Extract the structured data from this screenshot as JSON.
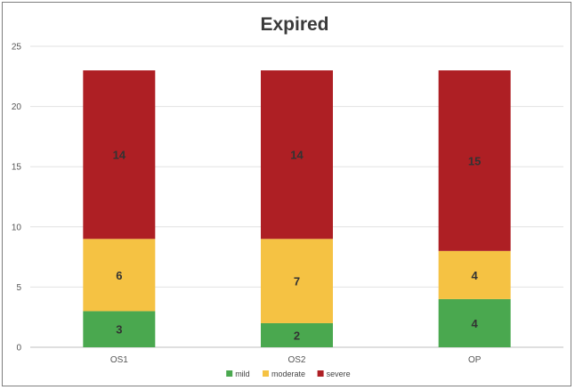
{
  "chart_data": {
    "type": "bar",
    "stacked": true,
    "title": "Expired",
    "xlabel": "",
    "ylabel": "",
    "categories": [
      "OS1",
      "OS2",
      "OP"
    ],
    "ylim": [
      0,
      25
    ],
    "yticks": [
      0,
      5,
      10,
      15,
      20,
      25
    ],
    "grid": true,
    "legend_position": "bottom",
    "series": [
      {
        "name": "mild",
        "color": "#4aa84f",
        "values": [
          3,
          2,
          4
        ]
      },
      {
        "name": "moderate",
        "color": "#f5c243",
        "values": [
          6,
          7,
          4
        ]
      },
      {
        "name": "severe",
        "color": "#ae1f24",
        "values": [
          14,
          14,
          15
        ]
      }
    ]
  }
}
